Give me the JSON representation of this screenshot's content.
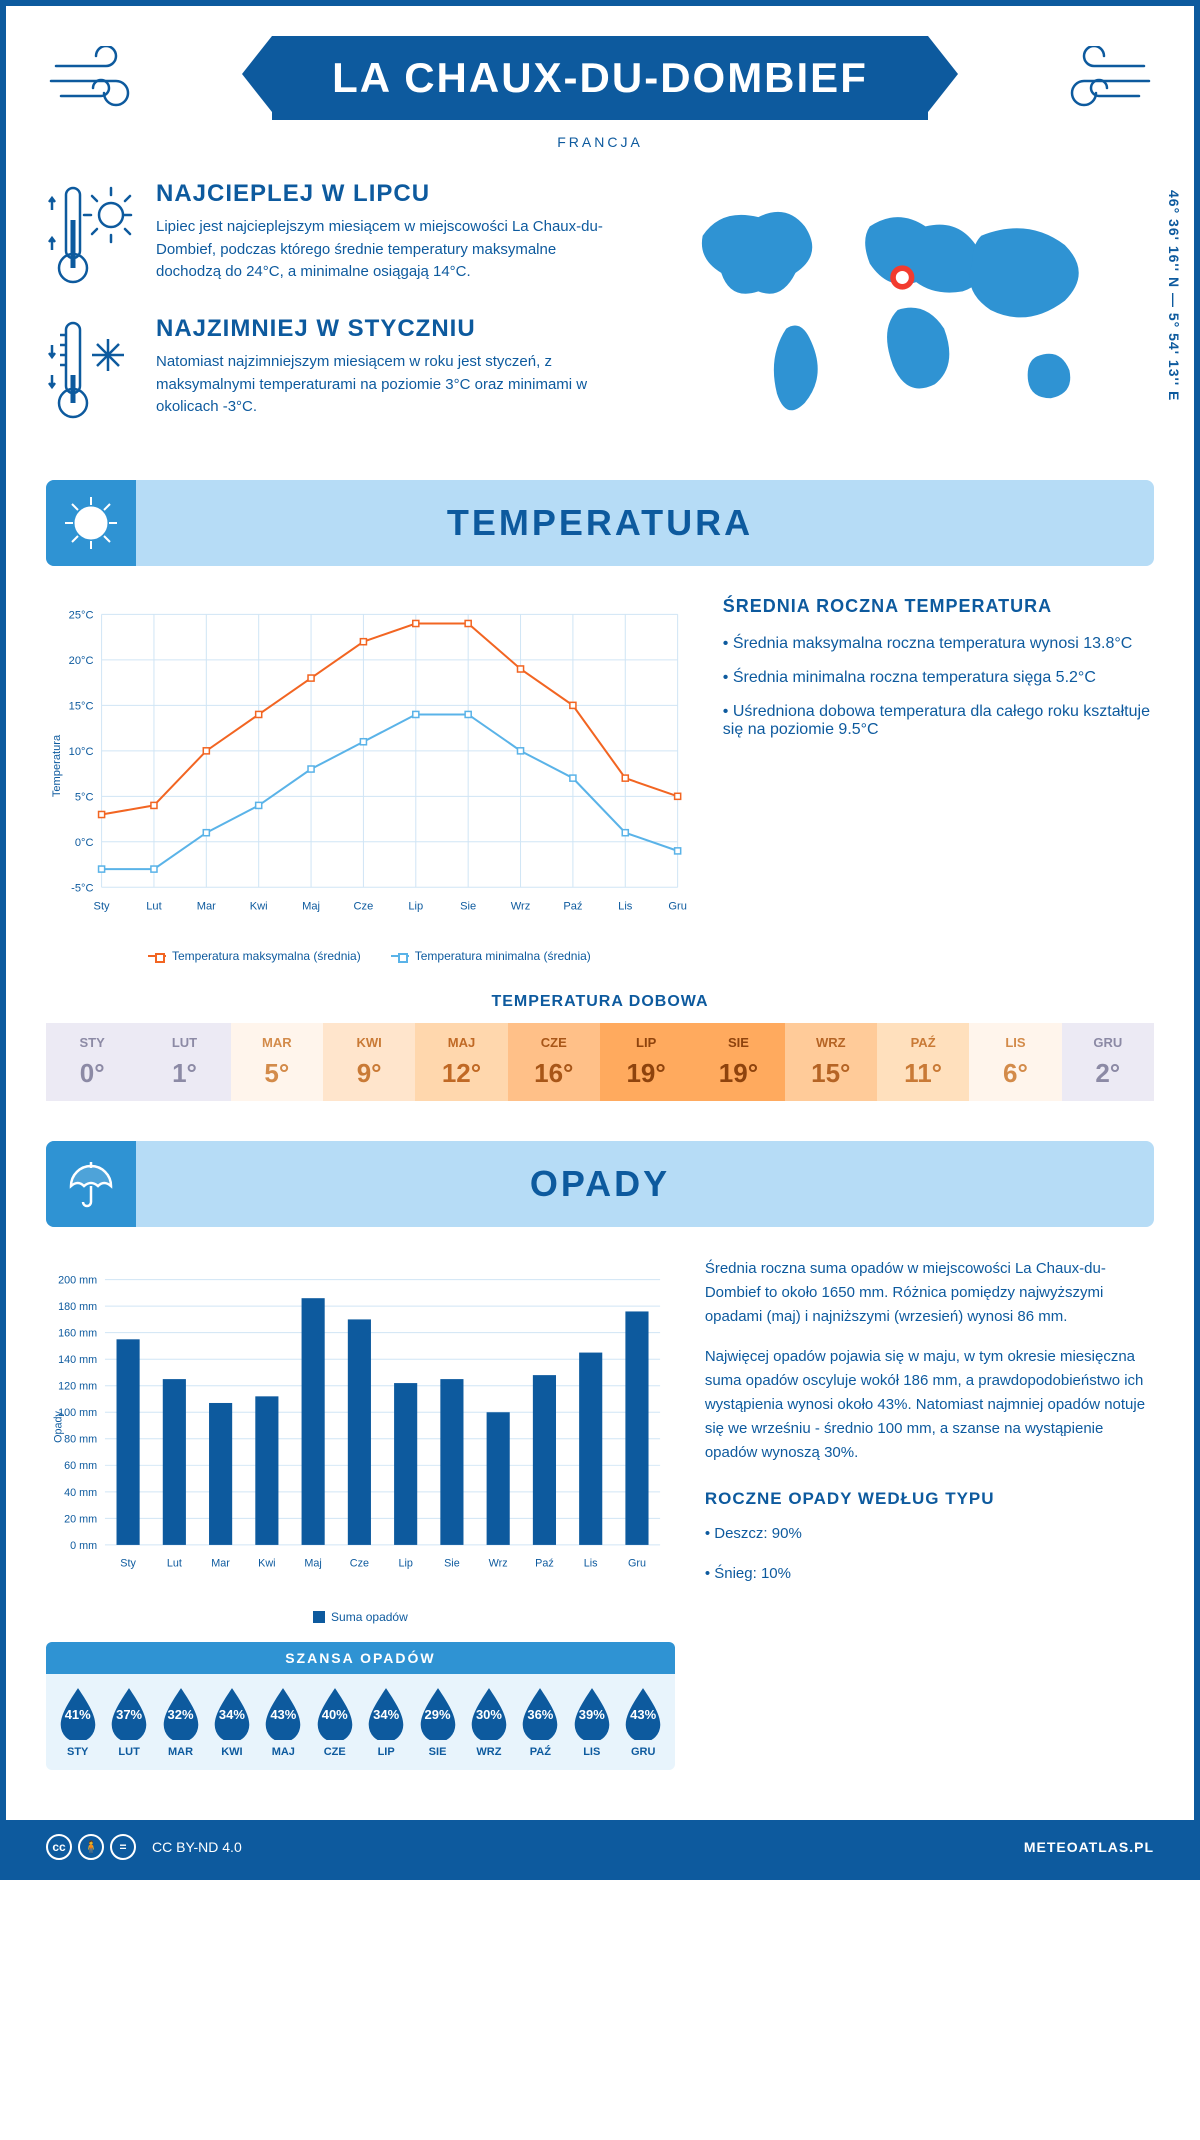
{
  "header": {
    "title": "LA CHAUX-DU-DOMBIEF",
    "country": "FRANCJA",
    "coordinates": "46° 36' 16'' N — 5° 54' 13'' E"
  },
  "colors": {
    "primary": "#0d5a9e",
    "light_blue": "#b6dcf6",
    "mid_blue": "#2f93d3",
    "orange": "#f26522",
    "chart_blue": "#5ab3e8"
  },
  "warmest": {
    "title": "NAJCIEPLEJ W LIPCU",
    "text": "Lipiec jest najcieplejszym miesiącem w miejscowości La Chaux-du-Dombief, podczas którego średnie temperatury maksymalne dochodzą do 24°C, a minimalne osiągają 14°C."
  },
  "coldest": {
    "title": "NAJZIMNIEJ W STYCZNIU",
    "text": "Natomiast najzimniejszym miesiącem w roku jest styczeń, z maksymalnymi temperaturami na poziomie 3°C oraz minimami w okolicach -3°C."
  },
  "temperature_section": {
    "title": "TEMPERATURA",
    "chart": {
      "type": "line",
      "months": [
        "Sty",
        "Lut",
        "Mar",
        "Kwi",
        "Maj",
        "Cze",
        "Lip",
        "Sie",
        "Wrz",
        "Paź",
        "Lis",
        "Gru"
      ],
      "series": [
        {
          "label": "Temperatura maksymalna (średnia)",
          "color": "#f26522",
          "values": [
            3,
            4,
            10,
            14,
            18,
            22,
            24,
            24,
            19,
            15,
            7,
            5
          ]
        },
        {
          "label": "Temperatura minimalna (średnia)",
          "color": "#5ab3e8",
          "values": [
            -3,
            -3,
            1,
            4,
            8,
            11,
            14,
            14,
            10,
            7,
            1,
            -1
          ]
        }
      ],
      "y_label": "Temperatura",
      "y_min": -5,
      "y_max": 25,
      "y_step": 5,
      "y_tick_suffix": "°C",
      "grid_color": "#d0e5f5",
      "background": "#ffffff",
      "line_width": 2,
      "marker": "square"
    },
    "info_title": "ŚREDNIA ROCZNA TEMPERATURA",
    "info_points": [
      "• Średnia maksymalna roczna temperatura wynosi 13.8°C",
      "• Średnia minimalna roczna temperatura sięga 5.2°C",
      "• Uśredniona dobowa temperatura dla całego roku kształtuje się na poziomie 9.5°C"
    ],
    "daily": {
      "title": "TEMPERATURA DOBOWA",
      "months": [
        "STY",
        "LUT",
        "MAR",
        "KWI",
        "MAJ",
        "CZE",
        "LIP",
        "SIE",
        "WRZ",
        "PAŹ",
        "LIS",
        "GRU"
      ],
      "values": [
        "0°",
        "1°",
        "5°",
        "9°",
        "12°",
        "16°",
        "19°",
        "19°",
        "15°",
        "11°",
        "6°",
        "2°"
      ],
      "cell_bg": [
        "#eceaf4",
        "#eceaf4",
        "#fff5ec",
        "#ffe5cc",
        "#ffd7ad",
        "#ffc088",
        "#ffaa5e",
        "#ffaa5e",
        "#ffcb99",
        "#ffe0bd",
        "#fff5ec",
        "#eceaf4"
      ],
      "cell_text": [
        "#8c8aa5",
        "#8c8aa5",
        "#d38b4a",
        "#c97a36",
        "#c06925",
        "#a85618",
        "#8e430d",
        "#8e430d",
        "#b56425",
        "#c97a36",
        "#d38b4a",
        "#8c8aa5"
      ]
    }
  },
  "precip_section": {
    "title": "OPADY",
    "chart": {
      "type": "bar",
      "months": [
        "Sty",
        "Lut",
        "Mar",
        "Kwi",
        "Maj",
        "Cze",
        "Lip",
        "Sie",
        "Wrz",
        "Paź",
        "Lis",
        "Gru"
      ],
      "values": [
        155,
        125,
        107,
        112,
        186,
        170,
        122,
        125,
        100,
        128,
        145,
        176
      ],
      "y_label": "Opady",
      "y_min": 0,
      "y_max": 200,
      "y_step": 20,
      "y_tick_suffix": " mm",
      "bar_color": "#0d5a9e",
      "grid_color": "#d0e5f5",
      "bar_width": 0.5,
      "legend_label": "Suma opadów"
    },
    "info_paras": [
      "Średnia roczna suma opadów w miejscowości La Chaux-du-Dombief to około 1650 mm. Różnica pomiędzy najwyższymi opadami (maj) i najniższymi (wrzesień) wynosi 86 mm.",
      "Najwięcej opadów pojawia się w maju, w tym okresie miesięczna suma opadów oscyluje wokół 186 mm, a prawdopodobieństwo ich wystąpienia wynosi około 43%. Natomiast najmniej opadów notuje się we wrześniu - średnio 100 mm, a szanse na wystąpienie opadów wynoszą 30%."
    ],
    "by_type": {
      "title": "ROCZNE OPADY WEDŁUG TYPU",
      "items": [
        "• Deszcz: 90%",
        "• Śnieg: 10%"
      ]
    },
    "chance": {
      "title": "SZANSA OPADÓW",
      "months": [
        "STY",
        "LUT",
        "MAR",
        "KWI",
        "MAJ",
        "CZE",
        "LIP",
        "SIE",
        "WRZ",
        "PAŹ",
        "LIS",
        "GRU"
      ],
      "values": [
        "41%",
        "37%",
        "32%",
        "34%",
        "43%",
        "40%",
        "34%",
        "29%",
        "30%",
        "36%",
        "39%",
        "43%"
      ],
      "drop_color": "#0d5a9e"
    }
  },
  "footer": {
    "license": "CC BY-ND 4.0",
    "site": "METEOATLAS.PL"
  }
}
